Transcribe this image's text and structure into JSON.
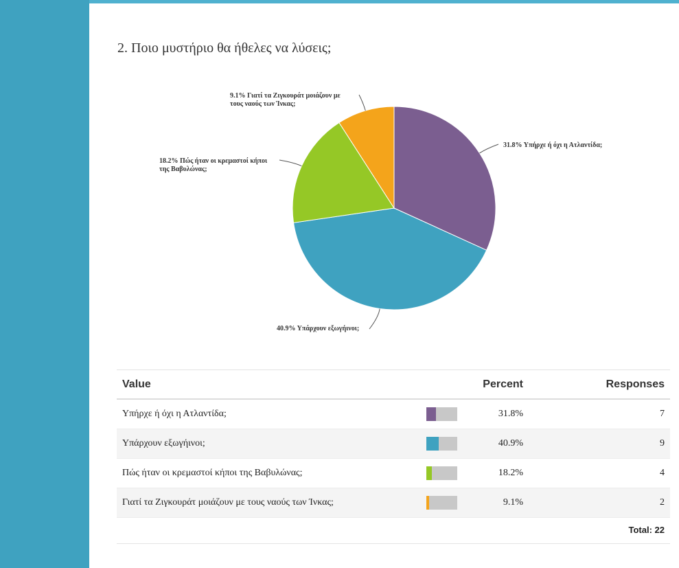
{
  "question": {
    "title": "2. Ποιο μυστήριο θα ήθελες να λύσεις;"
  },
  "chart_data": {
    "type": "pie",
    "slices": [
      {
        "label": "31.8% Υπήρχε ή όχι η Ατλαντίδα;",
        "value": 31.8,
        "color": "#7b5e90"
      },
      {
        "label": "40.9% Υπάρχουν εξωγήινοι;",
        "value": 40.9,
        "color": "#3fa2c0"
      },
      {
        "label": "18.2% Πώς ήταν οι κρεμαστοί κήποι της Βαβυλώνας;",
        "value": 18.2,
        "color": "#95c826"
      },
      {
        "label": "9.1% Γιατί τα Ζιγκουράτ μοιάζουν με τους ναούς των Ίνκας;",
        "value": 9.1,
        "color": "#f4a41b"
      }
    ]
  },
  "table": {
    "headers": {
      "value": "Value",
      "percent": "Percent",
      "responses": "Responses"
    },
    "rows": [
      {
        "value": "Υπήρχε ή όχι η Ατλαντίδα;",
        "percent": "31.8%",
        "responses": "7",
        "fraction": 0.318,
        "color": "#7b5e90"
      },
      {
        "value": "Υπάρχουν εξωγήινοι;",
        "percent": "40.9%",
        "responses": "9",
        "fraction": 0.409,
        "color": "#3fa2c0"
      },
      {
        "value": "Πώς ήταν οι κρεμαστοί κήποι της Βαβυλώνας;",
        "percent": "18.2%",
        "responses": "4",
        "fraction": 0.182,
        "color": "#95c826"
      },
      {
        "value": "Γιατί τα Ζιγκουράτ μοιάζουν με τους ναούς των Ίνκας;",
        "percent": "9.1%",
        "responses": "2",
        "fraction": 0.091,
        "color": "#f4a41b"
      }
    ],
    "total": "Total: 22"
  }
}
